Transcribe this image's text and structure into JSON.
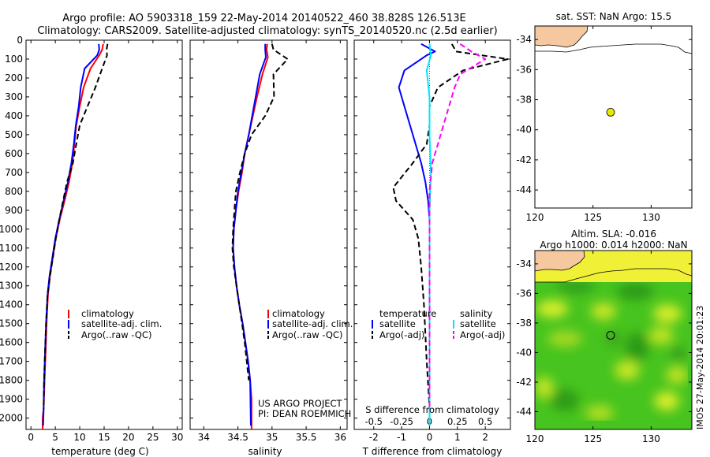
{
  "title_line1": "Argo profile: AO 5903318_159 22-May-2014 20140522_460 38.828S 126.513E",
  "title_line2": "Climatology: CARS2009. Satellite-adjusted climatology: synTS_20140520.nc (2.5d earlier)",
  "project_line1": "US ARGO PROJECT",
  "project_line2": "PI: DEAN ROEMMICH",
  "imos_stamp": "IMOS 27-May-2014 20:01:23",
  "colors": {
    "climatology": "#ff0000",
    "satellite": "#0000ff",
    "argo": "#000000",
    "s_satellite": "#00e5ff",
    "s_argo": "#ff00ff",
    "land": "#f5c8a0",
    "marker": "#e8e800"
  },
  "chart_data": [
    {
      "id": "temperature",
      "type": "line",
      "xlabel": "temperature (deg C)",
      "ylabel": "",
      "xlim": [
        -1,
        31
      ],
      "ylim": [
        2060,
        0
      ],
      "xticks": [
        0,
        5,
        10,
        15,
        20,
        25,
        30
      ],
      "yticks": [
        0,
        100,
        200,
        300,
        400,
        500,
        600,
        700,
        800,
        900,
        1000,
        1100,
        1200,
        1300,
        1400,
        1500,
        1600,
        1700,
        1800,
        1900,
        2000
      ],
      "legend": [
        "climatology",
        "satellite-adj. clim.",
        "Argo(..raw -QC)"
      ],
      "series": [
        {
          "name": "climatology",
          "style": "solid",
          "color": "#ff0000",
          "x": [
            14.8,
            14.6,
            14.0,
            12.2,
            10.8,
            10.0,
            9.3,
            8.9,
            8.5,
            7.8,
            6.9,
            5.9,
            5.1,
            4.5,
            3.9,
            3.5,
            3.2,
            3.0,
            2.8,
            2.6,
            2.4,
            2.4
          ],
          "y": [
            20,
            50,
            80,
            150,
            250,
            350,
            450,
            550,
            650,
            750,
            850,
            950,
            1050,
            1150,
            1250,
            1350,
            1500,
            1650,
            1800,
            1950,
            2000,
            2060
          ]
        },
        {
          "name": "satellite-adj. clim.",
          "style": "solid",
          "color": "#0000ff",
          "x": [
            13.9,
            14.0,
            13.6,
            11.0,
            10.2,
            9.8,
            9.2,
            8.8,
            8.3,
            7.6,
            6.7,
            5.8,
            5.0,
            4.4,
            3.8,
            3.4,
            3.1,
            2.9,
            2.7,
            2.6,
            2.5
          ],
          "y": [
            20,
            50,
            80,
            150,
            250,
            350,
            450,
            550,
            650,
            750,
            850,
            950,
            1050,
            1150,
            1250,
            1350,
            1500,
            1650,
            1800,
            1950,
            2040
          ]
        },
        {
          "name": "Argo(..raw -QC)",
          "style": "dashed",
          "color": "#000000",
          "x": [
            15.7,
            15.5,
            15.6,
            14.6,
            13.2,
            11.6,
            10.0,
            9.3,
            8.6,
            7.4,
            6.6,
            5.8,
            5.1,
            4.5,
            3.9,
            3.4,
            3.1,
            2.9,
            2.7,
            2.6
          ],
          "y": [
            20,
            50,
            80,
            150,
            250,
            350,
            450,
            550,
            650,
            750,
            850,
            950,
            1050,
            1150,
            1250,
            1350,
            1500,
            1650,
            1800,
            1950
          ]
        }
      ]
    },
    {
      "id": "salinity",
      "type": "line",
      "xlabel": "salinity",
      "ylabel": "",
      "xlim": [
        33.8,
        36.1
      ],
      "ylim": [
        2060,
        0
      ],
      "xticks": [
        34,
        34.5,
        35,
        35.5,
        36
      ],
      "legend": [
        "climatology",
        "satellite-adj. clim.",
        "Argo(..raw -QC)"
      ],
      "series": [
        {
          "name": "climatology",
          "style": "solid",
          "color": "#ff0000",
          "x": [
            34.93,
            34.92,
            34.94,
            34.86,
            34.78,
            34.72,
            34.66,
            34.6,
            34.56,
            34.51,
            34.47,
            34.44,
            34.43,
            34.45,
            34.48,
            34.52,
            34.57,
            34.61,
            34.65,
            34.68,
            34.7,
            34.7
          ],
          "y": [
            20,
            50,
            90,
            180,
            300,
            400,
            500,
            600,
            700,
            800,
            900,
            1000,
            1100,
            1200,
            1300,
            1400,
            1500,
            1600,
            1700,
            1800,
            1900,
            2060
          ]
        },
        {
          "name": "satellite-adj. clim.",
          "style": "solid",
          "color": "#0000ff",
          "x": [
            34.9,
            34.9,
            34.91,
            34.82,
            34.76,
            34.71,
            34.66,
            34.6,
            34.55,
            34.5,
            34.47,
            34.44,
            34.43,
            34.45,
            34.48,
            34.52,
            34.57,
            34.61,
            34.65,
            34.68,
            34.69
          ],
          "y": [
            20,
            50,
            90,
            180,
            300,
            400,
            500,
            600,
            700,
            800,
            900,
            1000,
            1100,
            1200,
            1300,
            1400,
            1500,
            1600,
            1700,
            1800,
            2040
          ]
        },
        {
          "name": "Argo(..raw -QC)",
          "style": "dashed",
          "color": "#000000",
          "x": [
            35.0,
            35.02,
            35.23,
            35.02,
            35.03,
            34.9,
            34.7,
            34.6,
            34.53,
            34.47,
            34.45,
            34.43,
            34.42,
            34.44,
            34.48,
            34.52,
            34.56,
            34.6,
            34.63,
            34.66
          ],
          "y": [
            20,
            50,
            100,
            180,
            300,
            400,
            500,
            600,
            700,
            800,
            900,
            1000,
            1100,
            1200,
            1300,
            1400,
            1500,
            1600,
            1700,
            1800
          ]
        }
      ]
    },
    {
      "id": "differences",
      "type": "line",
      "xlabel": "T difference from climatology",
      "x2label": "S difference from climatology",
      "xlim": [
        -2.7,
        2.9
      ],
      "ylim": [
        2060,
        0
      ],
      "xticks": [
        -2,
        -1,
        0,
        1,
        2
      ],
      "x2ticks": [
        "-0.5",
        "-0.25",
        "0",
        "0.25",
        "0.5"
      ],
      "legend_temperature_title": "temperature",
      "legend_salinity_title": "salinity",
      "legend": [
        "satellite",
        "Argo(-adj)",
        "satellite",
        "Argo(-adj)"
      ],
      "series": [
        {
          "name": "satellite",
          "group": "temperature",
          "style": "solid",
          "color": "#0000ff",
          "x": [
            -0.3,
            0.2,
            -0.1,
            -0.9,
            -1.1,
            -0.9,
            -0.7,
            -0.5,
            -0.3,
            -0.15,
            -0.05,
            0.0,
            0.0,
            0.0,
            0.0,
            0.0,
            0.0,
            0.0
          ],
          "y": [
            20,
            60,
            80,
            160,
            250,
            350,
            450,
            550,
            650,
            750,
            850,
            950,
            1100,
            1300,
            1500,
            1700,
            1900,
            2040
          ]
        },
        {
          "name": "Argo(-adj)",
          "group": "temperature",
          "style": "dashed",
          "color": "#000000",
          "x": [
            0.8,
            0.95,
            2.8,
            1.2,
            0.3,
            0.0,
            0.0,
            -0.1,
            -0.6,
            -1.3,
            -1.2,
            -0.6,
            -0.4,
            -0.3,
            -0.2,
            -0.1,
            0.0
          ],
          "y": [
            20,
            60,
            100,
            160,
            250,
            350,
            450,
            550,
            650,
            780,
            850,
            950,
            1050,
            1200,
            1400,
            1700,
            1950
          ]
        },
        {
          "name": "satellite",
          "group": "salinity",
          "style": "solid",
          "color": "#00e5ff",
          "x": [
            0.0,
            0.05,
            -0.1,
            0.0,
            0.0,
            0.05,
            0.0,
            0.0,
            0.0,
            0.0,
            0.0
          ],
          "y": [
            20,
            80,
            160,
            300,
            500,
            700,
            900,
            1200,
            1500,
            1800,
            2040
          ]
        },
        {
          "name": "Argo(-adj)",
          "group": "salinity",
          "style": "dashed",
          "color": "#ff00ff",
          "x": [
            1.1,
            1.5,
            2.0,
            1.1,
            0.9,
            0.7,
            0.5,
            0.3,
            0.1,
            0.0,
            0.0,
            0.0,
            0.0
          ],
          "y": [
            20,
            60,
            100,
            180,
            250,
            350,
            450,
            550,
            650,
            800,
            1100,
            1500,
            1950
          ]
        }
      ]
    },
    {
      "id": "sst_map",
      "type": "map",
      "title": "sat. SST: NaN Argo: 15.5",
      "xlim": [
        120,
        133.5
      ],
      "ylim": [
        -45.2,
        -33.1
      ],
      "xticks": [
        120,
        125,
        130
      ],
      "yticks": [
        -34,
        -36,
        -38,
        -40,
        -42,
        -44
      ],
      "marker": {
        "lon": 126.513,
        "lat": -38.828
      }
    },
    {
      "id": "sla_map",
      "type": "heatmap",
      "title_line1": "Altim. SLA: -0.016",
      "title_line2": "Argo h1000: 0.014 h2000: NaN",
      "xlim": [
        120,
        133.5
      ],
      "ylim": [
        -45.2,
        -33.1
      ],
      "xticks": [
        120,
        125,
        130
      ],
      "yticks": [
        -34,
        -36,
        -38,
        -40,
        -42,
        -44
      ],
      "marker": {
        "lon": 126.513,
        "lat": -38.828
      }
    }
  ]
}
